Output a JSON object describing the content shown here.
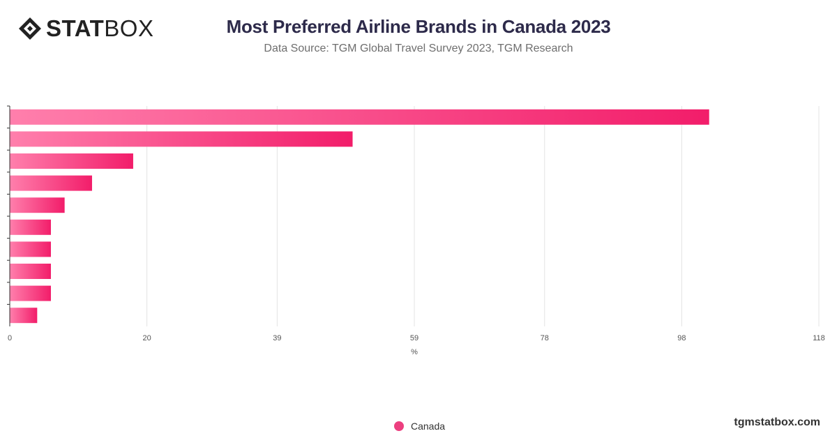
{
  "header": {
    "logo_text_bold": "STAT",
    "logo_text_light": "BOX",
    "title": "Most Preferred Airline Brands in Canada 2023",
    "subtitle": "Data Source: TGM Global Travel Survey 2023, TGM Research"
  },
  "chart_data": {
    "type": "bar",
    "orientation": "horizontal",
    "categories": [
      "",
      "",
      "",
      "",
      "",
      "",
      "",
      "",
      "",
      ""
    ],
    "series": [
      {
        "name": "Canada",
        "values": [
          102,
          50,
          18,
          12,
          8,
          6,
          6,
          6,
          6,
          4
        ]
      }
    ],
    "xlabel": "%",
    "xlim": [
      0,
      118
    ],
    "xticks": [
      0,
      20,
      39,
      59,
      78,
      98,
      118
    ],
    "grid": true,
    "legend_position": "bottom-center",
    "bar_gradient": [
      "#ff7fac",
      "#f21d6a"
    ]
  },
  "legend": {
    "label": "Canada",
    "color": "#ec3f7f"
  },
  "footer": {
    "url": "tgmstatbox.com"
  }
}
